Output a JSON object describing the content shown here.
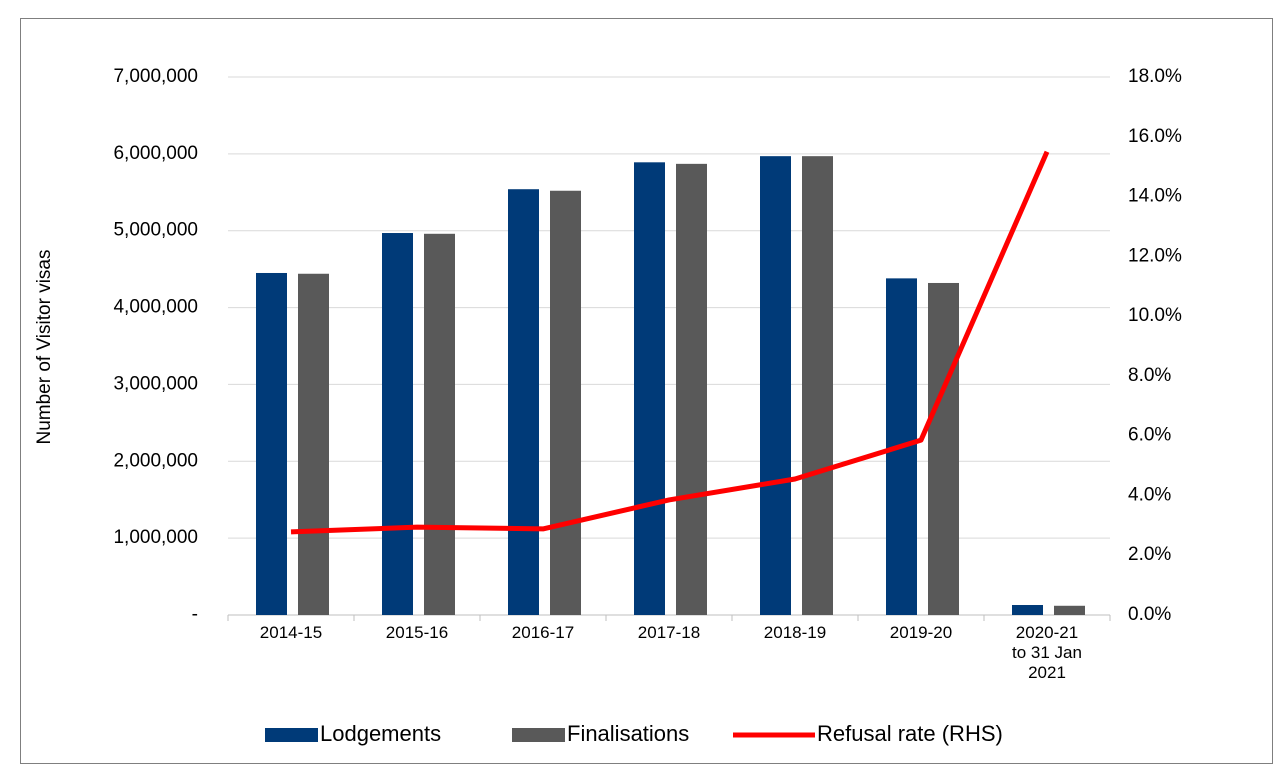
{
  "chart_data": {
    "type": "bar",
    "y_label": "Number of Visitor visas",
    "categories": [
      "2014-15",
      "2015-16",
      "2016-17",
      "2017-18",
      "2018-19",
      "2019-20",
      "2020-21 to 31 Jan 2021"
    ],
    "series": [
      {
        "name": "Lodgements",
        "color": "#003a78",
        "type": "bar",
        "values": [
          4450000,
          4970000,
          5540000,
          5890000,
          5970000,
          4380000,
          130000
        ]
      },
      {
        "name": "Finalisations",
        "color": "#595959",
        "type": "bar",
        "values": [
          4440000,
          4960000,
          5520000,
          5870000,
          5970000,
          4320000,
          120000
        ]
      },
      {
        "name": "Refusal rate (RHS)",
        "color": "#ff0000",
        "type": "line",
        "axis": "y2",
        "values": [
          2.78,
          2.94,
          2.88,
          3.85,
          4.55,
          5.85,
          15.5
        ]
      }
    ],
    "ylim": [
      0,
      7000000
    ],
    "yticks": [
      {
        "value": 0,
        "label": "-"
      },
      {
        "value": 1000000,
        "label": "1,000,000"
      },
      {
        "value": 2000000,
        "label": "2,000,000"
      },
      {
        "value": 3000000,
        "label": "3,000,000"
      },
      {
        "value": 4000000,
        "label": "4,000,000"
      },
      {
        "value": 5000000,
        "label": "5,000,000"
      },
      {
        "value": 6000000,
        "label": "6,000,000"
      },
      {
        "value": 7000000,
        "label": "7,000,000"
      }
    ],
    "y2lim": [
      0,
      18
    ],
    "y2ticks": [
      {
        "value": 0,
        "label": "0.0%"
      },
      {
        "value": 2,
        "label": "2.0%"
      },
      {
        "value": 4,
        "label": "4.0%"
      },
      {
        "value": 6,
        "label": "6.0%"
      },
      {
        "value": 8,
        "label": "8.0%"
      },
      {
        "value": 10,
        "label": "10.0%"
      },
      {
        "value": 12,
        "label": "12.0%"
      },
      {
        "value": 14,
        "label": "14.0%"
      },
      {
        "value": 16,
        "label": "16.0%"
      },
      {
        "value": 18,
        "label": "18.0%"
      }
    ],
    "grid": true,
    "legend": "bottom"
  }
}
